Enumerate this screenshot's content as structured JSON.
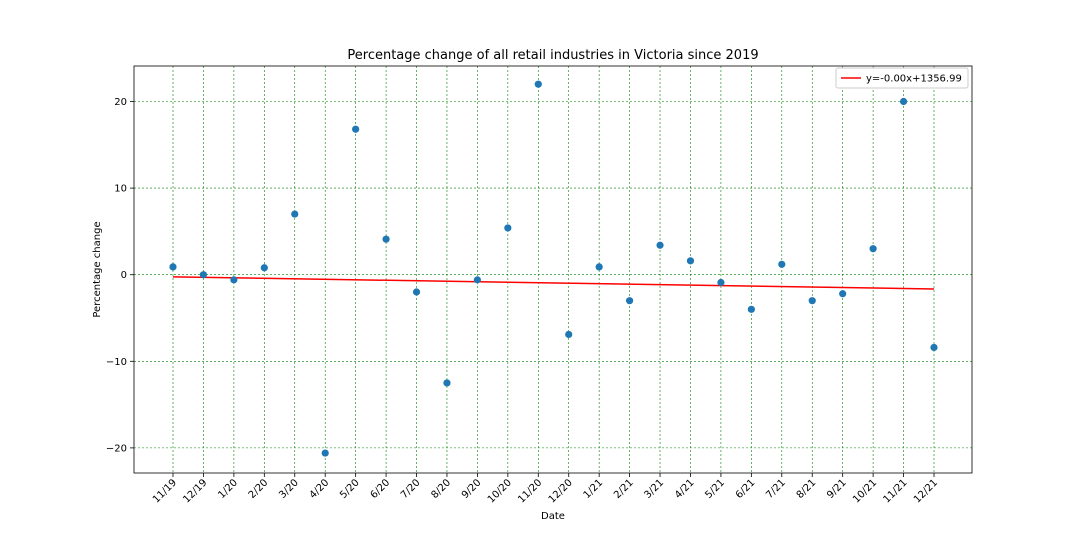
{
  "chart_data": {
    "type": "scatter",
    "title": "Percentage change of all retail industries in Victoria since 2019",
    "xlabel": "Date",
    "ylabel": "Percentage change",
    "categories": [
      "11/19",
      "12/19",
      "1/20",
      "2/20",
      "3/20",
      "4/20",
      "5/20",
      "6/20",
      "7/20",
      "8/20",
      "9/20",
      "10/20",
      "11/20",
      "12/20",
      "1/21",
      "2/21",
      "3/21",
      "4/21",
      "5/21",
      "6/21",
      "7/21",
      "8/21",
      "9/21",
      "10/21",
      "11/21",
      "12/21"
    ],
    "series": [
      {
        "values": [
          0.9,
          0.0,
          -0.6,
          0.8,
          7.0,
          -20.6,
          16.8,
          4.1,
          -2.0,
          -12.5,
          -0.6,
          5.4,
          22.0,
          -6.9,
          0.9,
          -3.0,
          3.4,
          1.6,
          -0.9,
          -4.0,
          1.2,
          -3.0,
          -2.2,
          3.0,
          20.0,
          -8.4
        ],
        "color": "#1f77b4"
      }
    ],
    "trendline": {
      "name": "y=-0.00x+1356.99",
      "color": "#ff0000",
      "start": -0.25,
      "end": -1.65
    },
    "ylim": [
      -22.9,
      24.1
    ],
    "yticks": [
      -20,
      -10,
      0,
      10,
      20
    ],
    "ytick_labels": [
      "−20",
      "−10",
      "0",
      "10",
      "20"
    ],
    "grid": true,
    "grid_color": "#008000",
    "legend_position": "top-right"
  }
}
